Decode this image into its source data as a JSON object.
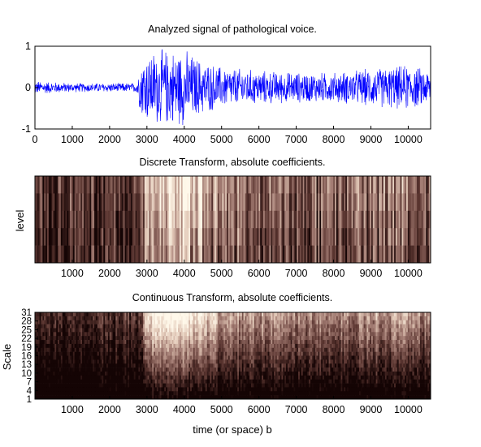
{
  "figure": {
    "background": "#ffffff",
    "signal_color": "#0000ff",
    "colormap": [
      "#140404",
      "#5a3530",
      "#a27b72",
      "#e2c9b8",
      "#fff8ea"
    ]
  },
  "chart_data": [
    {
      "type": "line",
      "title": "Analyzed signal of pathological voice.",
      "xlabel": "",
      "ylabel": "",
      "xlim": [
        0,
        10600
      ],
      "ylim": [
        -1,
        1
      ],
      "xticks": [
        "0",
        "1000",
        "2000",
        "3000",
        "4000",
        "5000",
        "6000",
        "7000",
        "8000",
        "9000",
        "10000"
      ],
      "yticks": [
        "-1",
        "0",
        "1"
      ],
      "series": [
        {
          "envelope_x": [
            0,
            1000,
            2000,
            2700,
            2900,
            3300,
            3700,
            4000,
            4500,
            5000,
            6000,
            7000,
            8000,
            9000,
            9500,
            10000,
            10600
          ],
          "envelope_amp": [
            0.18,
            0.12,
            0.12,
            0.12,
            0.9,
            1.0,
            1.0,
            1.0,
            0.7,
            0.55,
            0.45,
            0.4,
            0.4,
            0.5,
            0.55,
            0.6,
            0.45
          ]
        }
      ]
    },
    {
      "type": "heatmap",
      "title": "Discrete Transform, absolute coefficients.",
      "xlabel": "",
      "ylabel": "level",
      "xlim": [
        0,
        10600
      ],
      "xticks": [
        "1000",
        "2000",
        "3000",
        "4000",
        "5000",
        "6000",
        "7000",
        "8000",
        "9000",
        "10000"
      ],
      "levels": 5,
      "intensity_profile_x": [
        0,
        2000,
        2800,
        3000,
        3400,
        3800,
        4200,
        5000,
        6000,
        7000,
        8000,
        9000,
        10000,
        10600
      ],
      "intensity_profile": [
        0.25,
        0.25,
        0.35,
        0.7,
        0.8,
        0.85,
        0.75,
        0.5,
        0.45,
        0.4,
        0.4,
        0.45,
        0.5,
        0.4
      ]
    },
    {
      "type": "heatmap",
      "title": "Continuous Transform, absolute coefficients.",
      "xlabel": "time (or space) b",
      "ylabel": "Scale",
      "xlim": [
        0,
        10600
      ],
      "xticks": [
        "1000",
        "2000",
        "3000",
        "4000",
        "5000",
        "6000",
        "7000",
        "8000",
        "9000",
        "10000"
      ],
      "yticks": [
        "31",
        "28",
        "25",
        "22",
        "19",
        "16",
        "13",
        "10",
        "7",
        "4",
        "1"
      ],
      "intensity_profile_x": [
        0,
        2800,
        3000,
        3500,
        4000,
        4500,
        5000,
        6000,
        7000,
        8000,
        9000,
        9500,
        10000,
        10600
      ],
      "intensity_profile": [
        0.2,
        0.25,
        0.8,
        0.9,
        0.9,
        0.75,
        0.6,
        0.55,
        0.5,
        0.5,
        0.6,
        0.55,
        0.65,
        0.45
      ]
    }
  ]
}
